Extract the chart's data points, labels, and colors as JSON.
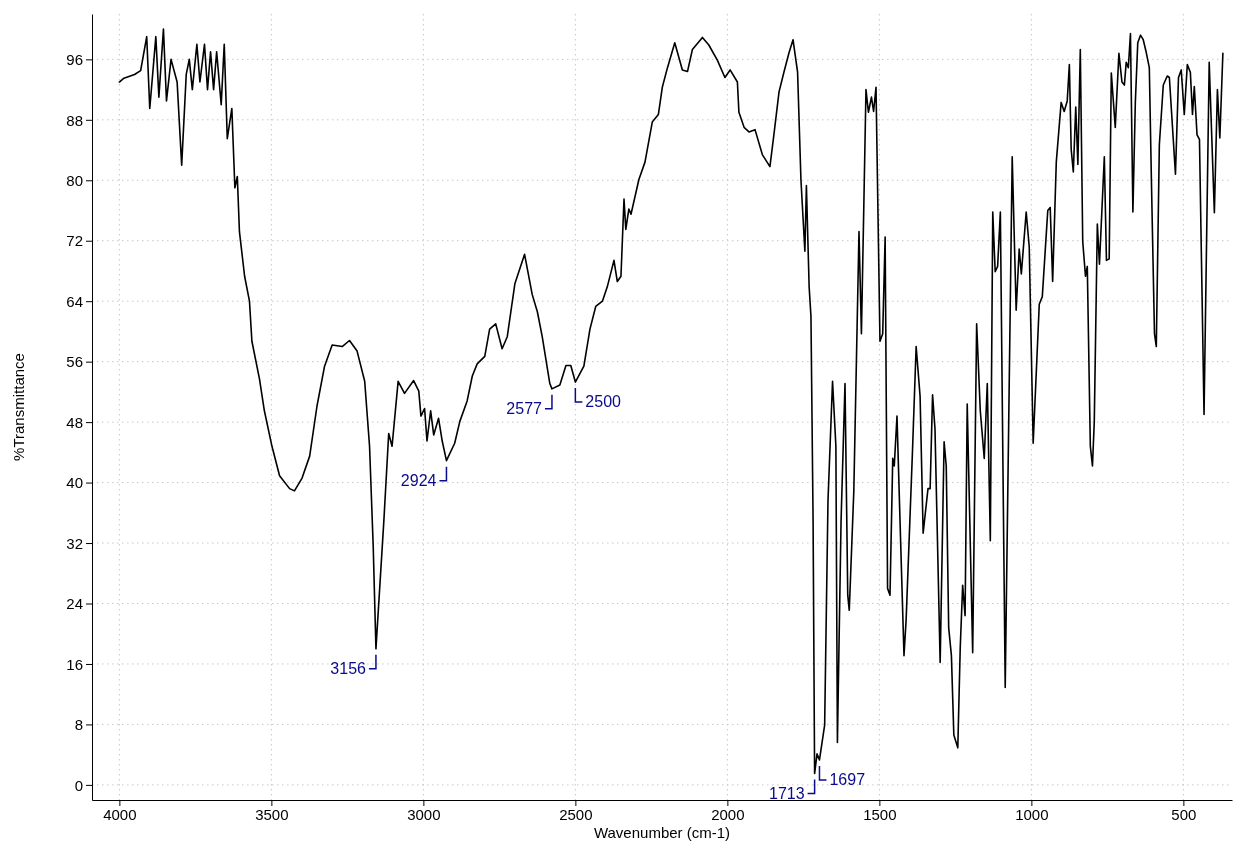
{
  "chart_data": {
    "type": "line",
    "xlabel": "Wavenumber (cm-1)",
    "ylabel": "%Transmittance",
    "xlim": [
      4090,
      340
    ],
    "ylim": [
      -2,
      102
    ],
    "xticks": [
      4000,
      3500,
      3000,
      2500,
      2000,
      1500,
      1000,
      500
    ],
    "yticks": [
      0,
      8,
      16,
      24,
      32,
      40,
      48,
      56,
      64,
      72,
      80,
      88,
      96
    ],
    "grid": true,
    "line_style": "solid",
    "marker": "none",
    "annotations": [
      {
        "text": "3156",
        "x": 3156,
        "y": 18
      },
      {
        "text": "2924",
        "x": 2924,
        "y": 42.9
      },
      {
        "text": "2577",
        "x": 2577,
        "y": 52.4
      },
      {
        "text": "2500",
        "x": 2500,
        "y": 53.3
      },
      {
        "text": "1713",
        "x": 1713,
        "y": 1.5
      },
      {
        "text": "1697",
        "x": 1697,
        "y": 3.3
      }
    ],
    "series": [
      {
        "color": "#000000",
        "x": [
          4000,
          3985,
          3950,
          3930,
          3910,
          3900,
          3880,
          3870,
          3855,
          3845,
          3830,
          3810,
          3795,
          3780,
          3770,
          3760,
          3745,
          3735,
          3720,
          3710,
          3700,
          3690,
          3680,
          3665,
          3655,
          3645,
          3630,
          3620,
          3612,
          3605,
          3588,
          3572,
          3564,
          3539,
          3523,
          3498,
          3473,
          3440,
          3424,
          3399,
          3374,
          3350,
          3325,
          3300,
          3267,
          3243,
          3218,
          3193,
          3177,
          3165,
          3156,
          3130,
          3114,
          3103,
          3083,
          3062,
          3032,
          3015,
          3008,
          2996,
          2988,
          2976,
          2966,
          2950,
          2938,
          2924,
          2897,
          2880,
          2856,
          2839,
          2823,
          2798,
          2782,
          2762,
          2741,
          2724,
          2699,
          2667,
          2642,
          2625,
          2609,
          2584,
          2577,
          2551,
          2531,
          2515,
          2500,
          2472,
          2452,
          2433,
          2411,
          2395,
          2373,
          2362,
          2350,
          2340,
          2334,
          2324,
          2317,
          2291,
          2271,
          2247,
          2227,
          2214,
          2197,
          2173,
          2148,
          2131,
          2115,
          2082,
          2061,
          2033,
          2008,
          1991,
          1967,
          1962,
          1945,
          1929,
          1909,
          1885,
          1860,
          1847,
          1830,
          1814,
          1797,
          1784,
          1769,
          1758,
          1745,
          1740,
          1731,
          1725,
          1718,
          1713,
          1705,
          1697,
          1680,
          1669,
          1654,
          1643,
          1638,
          1626,
          1613,
          1604,
          1599,
          1584,
          1567,
          1559,
          1544,
          1536,
          1526,
          1519,
          1511,
          1498,
          1489,
          1481,
          1473,
          1465,
          1456,
          1451,
          1442,
          1432,
          1419,
          1412,
          1391,
          1379,
          1366,
          1356,
          1340,
          1333,
          1325,
          1317,
          1300,
          1287,
          1280,
          1272,
          1263,
          1255,
          1242,
          1234,
          1226,
          1218,
          1211,
          1193,
          1180,
          1168,
          1155,
          1145,
          1135,
          1127,
          1119,
          1111,
          1102,
          1086,
          1063,
          1050,
          1040,
          1033,
          1017,
          1007,
          994,
          974,
          964,
          946,
          938,
          930,
          918,
          902,
          892,
          882,
          875,
          869,
          862,
          854,
          847,
          839,
          831,
          822,
          816,
          806,
          799,
          793,
          783,
          776,
          760,
          753,
          744,
          737,
          724,
          712,
          702,
          694,
          688,
          681,
          674,
          666,
          658,
          650,
          641,
          632,
          622,
          612,
          605,
          595,
          589,
          579,
          566,
          553,
          546,
          526,
          516,
          507,
          497,
          487,
          477,
          470,
          464,
          455,
          447,
          432,
          415,
          398,
          388,
          380,
          370
        ],
        "values": [
          93,
          93.5,
          94,
          94.5,
          99,
          89.5,
          99,
          91,
          100,
          90.5,
          96,
          93,
          82,
          94,
          96,
          92,
          98,
          93,
          98,
          92,
          97,
          92,
          97,
          90,
          98,
          85.5,
          89.5,
          79,
          80.5,
          73.2,
          67.3,
          64,
          58.7,
          53.7,
          49.5,
          44.8,
          40.9,
          39.2,
          38.9,
          40.6,
          43.5,
          50.1,
          55.4,
          58.2,
          58,
          58.8,
          57.4,
          53.4,
          44.8,
          31.6,
          18,
          34.9,
          46.5,
          44.8,
          53.4,
          51.8,
          53.5,
          52.1,
          48.8,
          49.8,
          45.5,
          49.5,
          46.3,
          48.5,
          45.5,
          42.9,
          45.2,
          48.1,
          50.8,
          54.1,
          55.7,
          56.7,
          60.3,
          61,
          57.7,
          59.3,
          66.3,
          70.2,
          64.9,
          62.6,
          59.3,
          53.1,
          52.4,
          52.9,
          55.5,
          55.5,
          53.3,
          55.4,
          60.3,
          63.3,
          64,
          65.9,
          69.4,
          66.6,
          67.3,
          77.5,
          73.5,
          76.2,
          75.5,
          80.1,
          82.4,
          87.7,
          88.7,
          92.3,
          94.9,
          98.2,
          94.6,
          94.4,
          97.3,
          98.9,
          97.9,
          95.9,
          93.6,
          94.6,
          93,
          89,
          87,
          86.4,
          86.7,
          83.4,
          81.8,
          86,
          91.7,
          94.3,
          96.9,
          98.6,
          94.3,
          80.1,
          70.6,
          79.3,
          65.9,
          62,
          34.9,
          1.5,
          4.1,
          3.3,
          7.9,
          37.6,
          53.4,
          44.8,
          5.6,
          34.9,
          53.1,
          25.1,
          23.1,
          38.9,
          73.2,
          59.7,
          92,
          89,
          91,
          89.1,
          92.3,
          58.7,
          59.7,
          72.5,
          26,
          25.1,
          43.2,
          42.2,
          48.8,
          34.9,
          17.1,
          21.8,
          44.2,
          58,
          51.4,
          33.3,
          39.2,
          39.2,
          51.6,
          47.1,
          16.2,
          45.4,
          42.2,
          20.8,
          17.1,
          6.6,
          4.9,
          18.1,
          26.4,
          22.4,
          50.4,
          17.5,
          61,
          49.5,
          43.2,
          53.1,
          32.3,
          75.8,
          67.9,
          68.6,
          75.8,
          12.9,
          83.1,
          62.8,
          70.9,
          67.6,
          75.8,
          71.2,
          45.2,
          63.6,
          64.6,
          76,
          76.4,
          66.6,
          82.4,
          90.3,
          89.1,
          90.5,
          95.3,
          84.1,
          81.1,
          89.7,
          82.1,
          97.3,
          71.9,
          67.3,
          68.6,
          44.8,
          42.2,
          48.1,
          74.2,
          68.9,
          83.1,
          69.4,
          69.6,
          94.2,
          87,
          96.8,
          93,
          92.6,
          95.6,
          94.9,
          99.4,
          75.8,
          90.3,
          98.2,
          99.2,
          98.6,
          96.9,
          94.9,
          79.8,
          59.7,
          58,
          84.7,
          92.6,
          93.8,
          93.6,
          80.8,
          93.6,
          94.6,
          88.7,
          95.3,
          94.3,
          88.7,
          92.4,
          86,
          85.4,
          49,
          95.6,
          75.7,
          92,
          85.6,
          96.8
        ]
      }
    ]
  }
}
